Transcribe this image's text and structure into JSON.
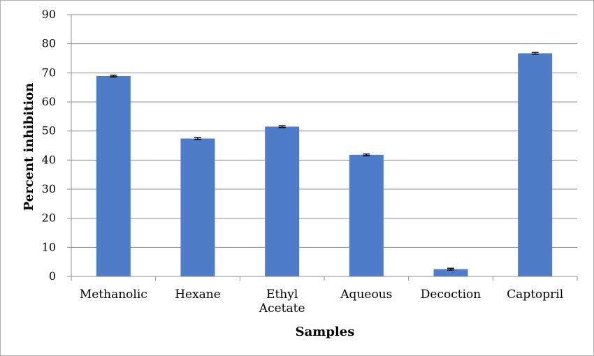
{
  "chart_data": {
    "type": "bar",
    "categories": [
      "Methanolic",
      "Hexane",
      "Ethyl Acetate",
      "Aqueous",
      "Decoction",
      "Captopril"
    ],
    "category_lines": [
      [
        "Methanolic"
      ],
      [
        "Hexane"
      ],
      [
        "Ethyl",
        "Acetate"
      ],
      [
        "Aqueous"
      ],
      [
        "Decoction"
      ],
      [
        "Captopril"
      ]
    ],
    "values": [
      68.9,
      47.4,
      51.5,
      41.8,
      2.5,
      76.7
    ],
    "error": [
      0.3,
      0.3,
      0.3,
      0.3,
      0.3,
      0.3
    ],
    "xlabel": "Samples",
    "ylabel": "Percent inhibition",
    "ylim": [
      0,
      90
    ],
    "yticks": [
      0,
      10,
      20,
      30,
      40,
      50,
      60,
      70,
      80,
      90
    ],
    "grid": true,
    "legend": "none",
    "bar_color": "#4f7cc9",
    "grid_color": "#8c8c8c"
  }
}
